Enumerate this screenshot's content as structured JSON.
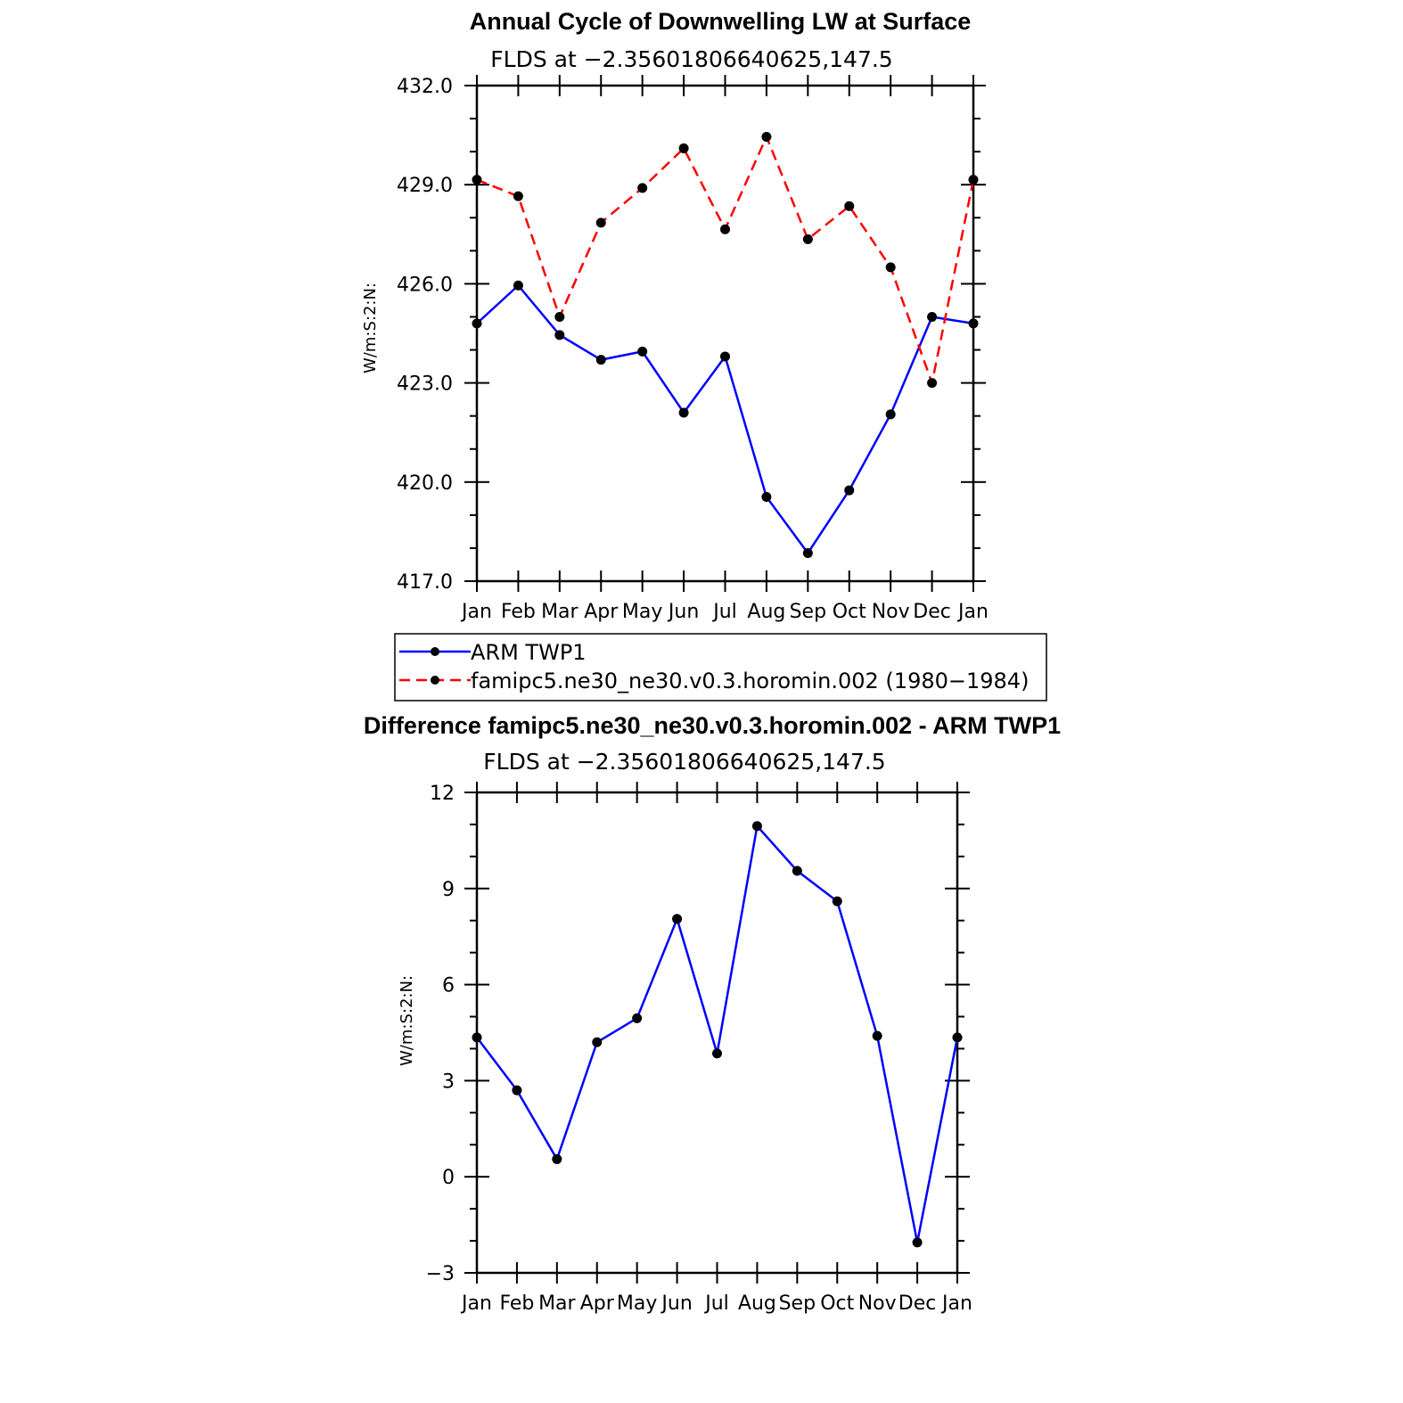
{
  "chart_data": [
    {
      "type": "line",
      "title": "Annual Cycle of Downwelling LW at Surface",
      "subtitle": "FLDS at −2.35601806640625,147.5",
      "xlabel": "",
      "ylabel": "W/m:S:2:N:",
      "categories": [
        "Jan",
        "Feb",
        "Mar",
        "Apr",
        "May",
        "Jun",
        "Jul",
        "Aug",
        "Sep",
        "Oct",
        "Nov",
        "Dec",
        "Jan"
      ],
      "ylim": [
        417.0,
        432.0
      ],
      "yticks": [
        "432.0",
        "429.0",
        "426.0",
        "423.0",
        "420.0",
        "417.0"
      ],
      "ytick_values": [
        432,
        429,
        426,
        423,
        420,
        417
      ],
      "grid": false,
      "legend": "below",
      "series": [
        {
          "name": "ARM  TWP1",
          "color": "#0000ff",
          "dash": "solid",
          "values": [
            424.8,
            425.95,
            424.45,
            423.7,
            423.95,
            422.1,
            423.8,
            419.55,
            417.85,
            419.75,
            422.05,
            425.0,
            424.8
          ]
        },
        {
          "name": "famipc5.ne30_ne30.v0.3.horomin.002 (1980−1984)",
          "color": "#ff0000",
          "dash": "dashed",
          "values": [
            429.15,
            428.65,
            425.0,
            427.85,
            428.9,
            430.1,
            427.65,
            430.45,
            427.35,
            428.35,
            426.5,
            423.0,
            429.15
          ]
        }
      ]
    },
    {
      "type": "line",
      "title": "Difference famipc5.ne30_ne30.v0.3.horomin.002 - ARM TWP1",
      "subtitle": "FLDS at −2.35601806640625,147.5",
      "xlabel": "",
      "ylabel": "W/m:S:2:N:",
      "categories": [
        "Jan",
        "Feb",
        "Mar",
        "Apr",
        "May",
        "Jun",
        "Jul",
        "Aug",
        "Sep",
        "Oct",
        "Nov",
        "Dec",
        "Jan"
      ],
      "ylim": [
        -3,
        12
      ],
      "yticks": [
        "12",
        "9",
        "6",
        "3",
        "0",
        "−3"
      ],
      "ytick_values": [
        12,
        9,
        6,
        3,
        0,
        -3
      ],
      "grid": false,
      "series": [
        {
          "color": "#0000ff",
          "dash": "solid",
          "values": [
            4.35,
            2.7,
            0.55,
            4.2,
            4.95,
            8.05,
            3.85,
            10.95,
            9.55,
            8.6,
            4.4,
            -2.05,
            4.35
          ]
        }
      ]
    }
  ]
}
